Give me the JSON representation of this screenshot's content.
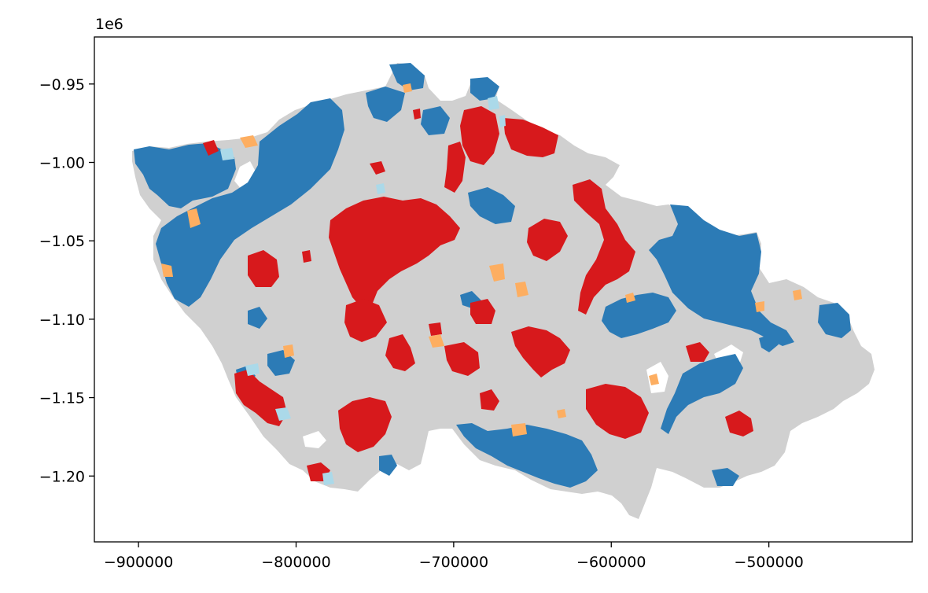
{
  "chart_data": {
    "type": "choropleth-map",
    "x_axis": {
      "range": [
        -928000,
        -409000
      ],
      "ticks": [
        -900000,
        -800000,
        -700000,
        -600000,
        -500000
      ],
      "tick_labels": [
        "−900000",
        "−800000",
        "−700000",
        "−600000",
        "−500000"
      ]
    },
    "y_axis": {
      "range": [
        -1.242,
        -0.92
      ],
      "ticks": [
        -0.95,
        -1.0,
        -1.05,
        -1.1,
        -1.15,
        -1.2
      ],
      "tick_labels": [
        "−0.95",
        "−1.00",
        "−1.05",
        "−1.10",
        "−1.15",
        "−1.20"
      ],
      "offset_label": "1e6"
    },
    "grid": false,
    "legend": "none",
    "colors": {
      "background_area": "#d0d0d0",
      "high_high": "#d7191c",
      "low_low": "#2c7bb6",
      "low_high": "#fdae61",
      "high_low": "#abd9e9"
    }
  }
}
